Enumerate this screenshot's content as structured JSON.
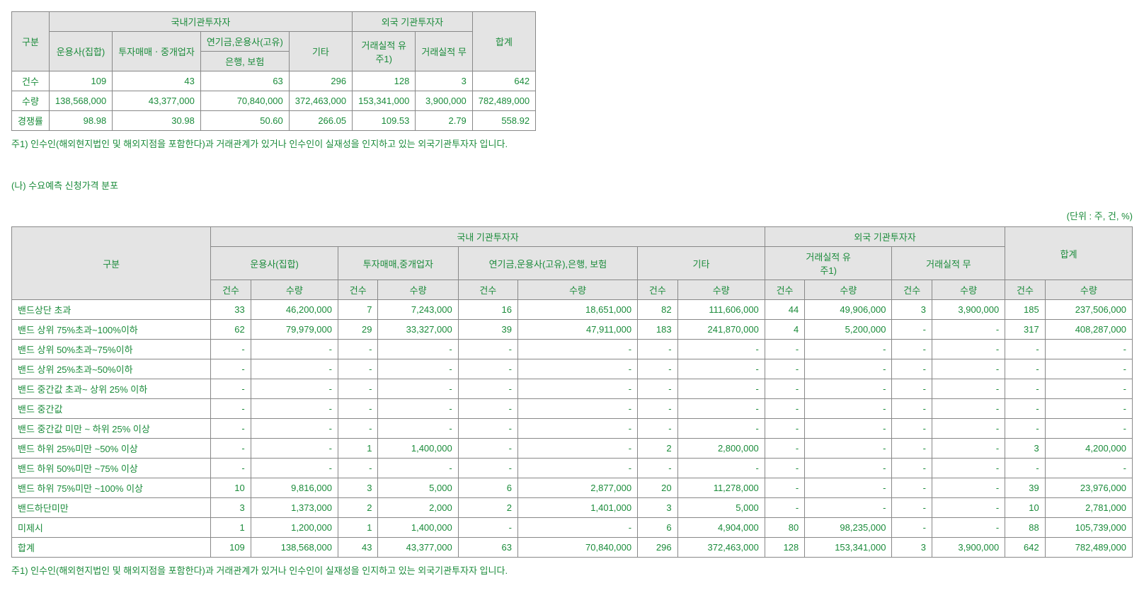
{
  "table1": {
    "headers": {
      "category": "구분",
      "domestic": "국내기관투자자",
      "foreign": "외국 기관투자자",
      "total": "합계",
      "col1": "운용사(집합)",
      "col2": "투자매매ㆍ중개업자",
      "col3a": "연기금,운용사(고유)",
      "col3b": "은행, 보험",
      "col4": "기타",
      "col5": "거래실적 유\n주1)",
      "col6": "거래실적 무"
    },
    "rows": [
      {
        "label": "건수",
        "v": [
          "109",
          "43",
          "63",
          "296",
          "128",
          "3",
          "642"
        ]
      },
      {
        "label": "수량",
        "v": [
          "138,568,000",
          "43,377,000",
          "70,840,000",
          "372,463,000",
          "153,341,000",
          "3,900,000",
          "782,489,000"
        ]
      },
      {
        "label": "경쟁률",
        "v": [
          "98.98",
          "30.98",
          "50.60",
          "266.05",
          "109.53",
          "2.79",
          "558.92"
        ]
      }
    ],
    "footnote": "주1) 인수인(해외현지법인 및 해외지점을 포함한다)과 거래관계가 있거나 인수인이 실재성을 인지하고 있는 외국기관투자자 입니다."
  },
  "section2": {
    "title": "(나) 수요예측 신청가격 분포",
    "unit": "(단위 : 주, 건, %)"
  },
  "table2": {
    "headers": {
      "category": "구분",
      "domestic": "국내 기관투자자",
      "foreign": "외국 기관투자자",
      "total": "합계",
      "g1": "운용사(집합)",
      "g2": "투자매매,중개업자",
      "g3": "연기금,운용사(고유),은행, 보험",
      "g4": "기타",
      "g5": "거래실적 유\n주1)",
      "g6": "거래실적 무",
      "count": "건수",
      "qty": "수량"
    },
    "rows": [
      {
        "label": "밴드상단 초과",
        "v": [
          "33",
          "46,200,000",
          "7",
          "7,243,000",
          "16",
          "18,651,000",
          "82",
          "111,606,000",
          "44",
          "49,906,000",
          "3",
          "3,900,000",
          "185",
          "237,506,000"
        ]
      },
      {
        "label": "밴드 상위 75%초과~100%이하",
        "v": [
          "62",
          "79,979,000",
          "29",
          "33,327,000",
          "39",
          "47,911,000",
          "183",
          "241,870,000",
          "4",
          "5,200,000",
          "-",
          "-",
          "317",
          "408,287,000"
        ]
      },
      {
        "label": "밴드 상위 50%초과~75%이하",
        "v": [
          "-",
          "-",
          "-",
          "-",
          "-",
          "-",
          "-",
          "-",
          "-",
          "-",
          "-",
          "-",
          "-",
          "-"
        ]
      },
      {
        "label": "밴드 상위 25%초과~50%이하",
        "v": [
          "-",
          "-",
          "-",
          "-",
          "-",
          "-",
          "-",
          "-",
          "-",
          "-",
          "-",
          "-",
          "-",
          "-"
        ]
      },
      {
        "label": "밴드 중간값 초과~ 상위 25% 이하",
        "v": [
          "-",
          "-",
          "-",
          "-",
          "-",
          "-",
          "-",
          "-",
          "-",
          "-",
          "-",
          "-",
          "-",
          "-"
        ]
      },
      {
        "label": "밴드 중간값",
        "v": [
          "-",
          "-",
          "-",
          "-",
          "-",
          "-",
          "-",
          "-",
          "-",
          "-",
          "-",
          "-",
          "-",
          "-"
        ]
      },
      {
        "label": "밴드 중간값 미만 ~ 하위 25% 이상",
        "v": [
          "-",
          "-",
          "-",
          "-",
          "-",
          "-",
          "-",
          "-",
          "-",
          "-",
          "-",
          "-",
          "-",
          "-"
        ]
      },
      {
        "label": "밴드 하위 25%미만 ~50% 이상",
        "v": [
          "-",
          "-",
          "1",
          "1,400,000",
          "-",
          "-",
          "2",
          "2,800,000",
          "-",
          "-",
          "-",
          "-",
          "3",
          "4,200,000"
        ]
      },
      {
        "label": "밴드 하위 50%미만 ~75% 이상",
        "v": [
          "-",
          "-",
          "-",
          "-",
          "-",
          "-",
          "-",
          "-",
          "-",
          "-",
          "-",
          "-",
          "-",
          "-"
        ]
      },
      {
        "label": "밴드 하위 75%미만 ~100% 이상",
        "v": [
          "10",
          "9,816,000",
          "3",
          "5,000",
          "6",
          "2,877,000",
          "20",
          "11,278,000",
          "-",
          "-",
          "-",
          "-",
          "39",
          "23,976,000"
        ]
      },
      {
        "label": "밴드하단미만",
        "v": [
          "3",
          "1,373,000",
          "2",
          "2,000",
          "2",
          "1,401,000",
          "3",
          "5,000",
          "-",
          "-",
          "-",
          "-",
          "10",
          "2,781,000"
        ]
      },
      {
        "label": "미제시",
        "v": [
          "1",
          "1,200,000",
          "1",
          "1,400,000",
          "-",
          "-",
          "6",
          "4,904,000",
          "80",
          "98,235,000",
          "-",
          "-",
          "88",
          "105,739,000"
        ]
      },
      {
        "label": "합계",
        "v": [
          "109",
          "138,568,000",
          "43",
          "43,377,000",
          "63",
          "70,840,000",
          "296",
          "372,463,000",
          "128",
          "153,341,000",
          "3",
          "3,900,000",
          "642",
          "782,489,000"
        ]
      }
    ],
    "footnote": "주1) 인수인(해외현지법인 및 해외지점을 포함한다)과 거래관계가 있거나 인수인이 실재성을 인지하고 있는 외국기관투자자 입니다."
  }
}
